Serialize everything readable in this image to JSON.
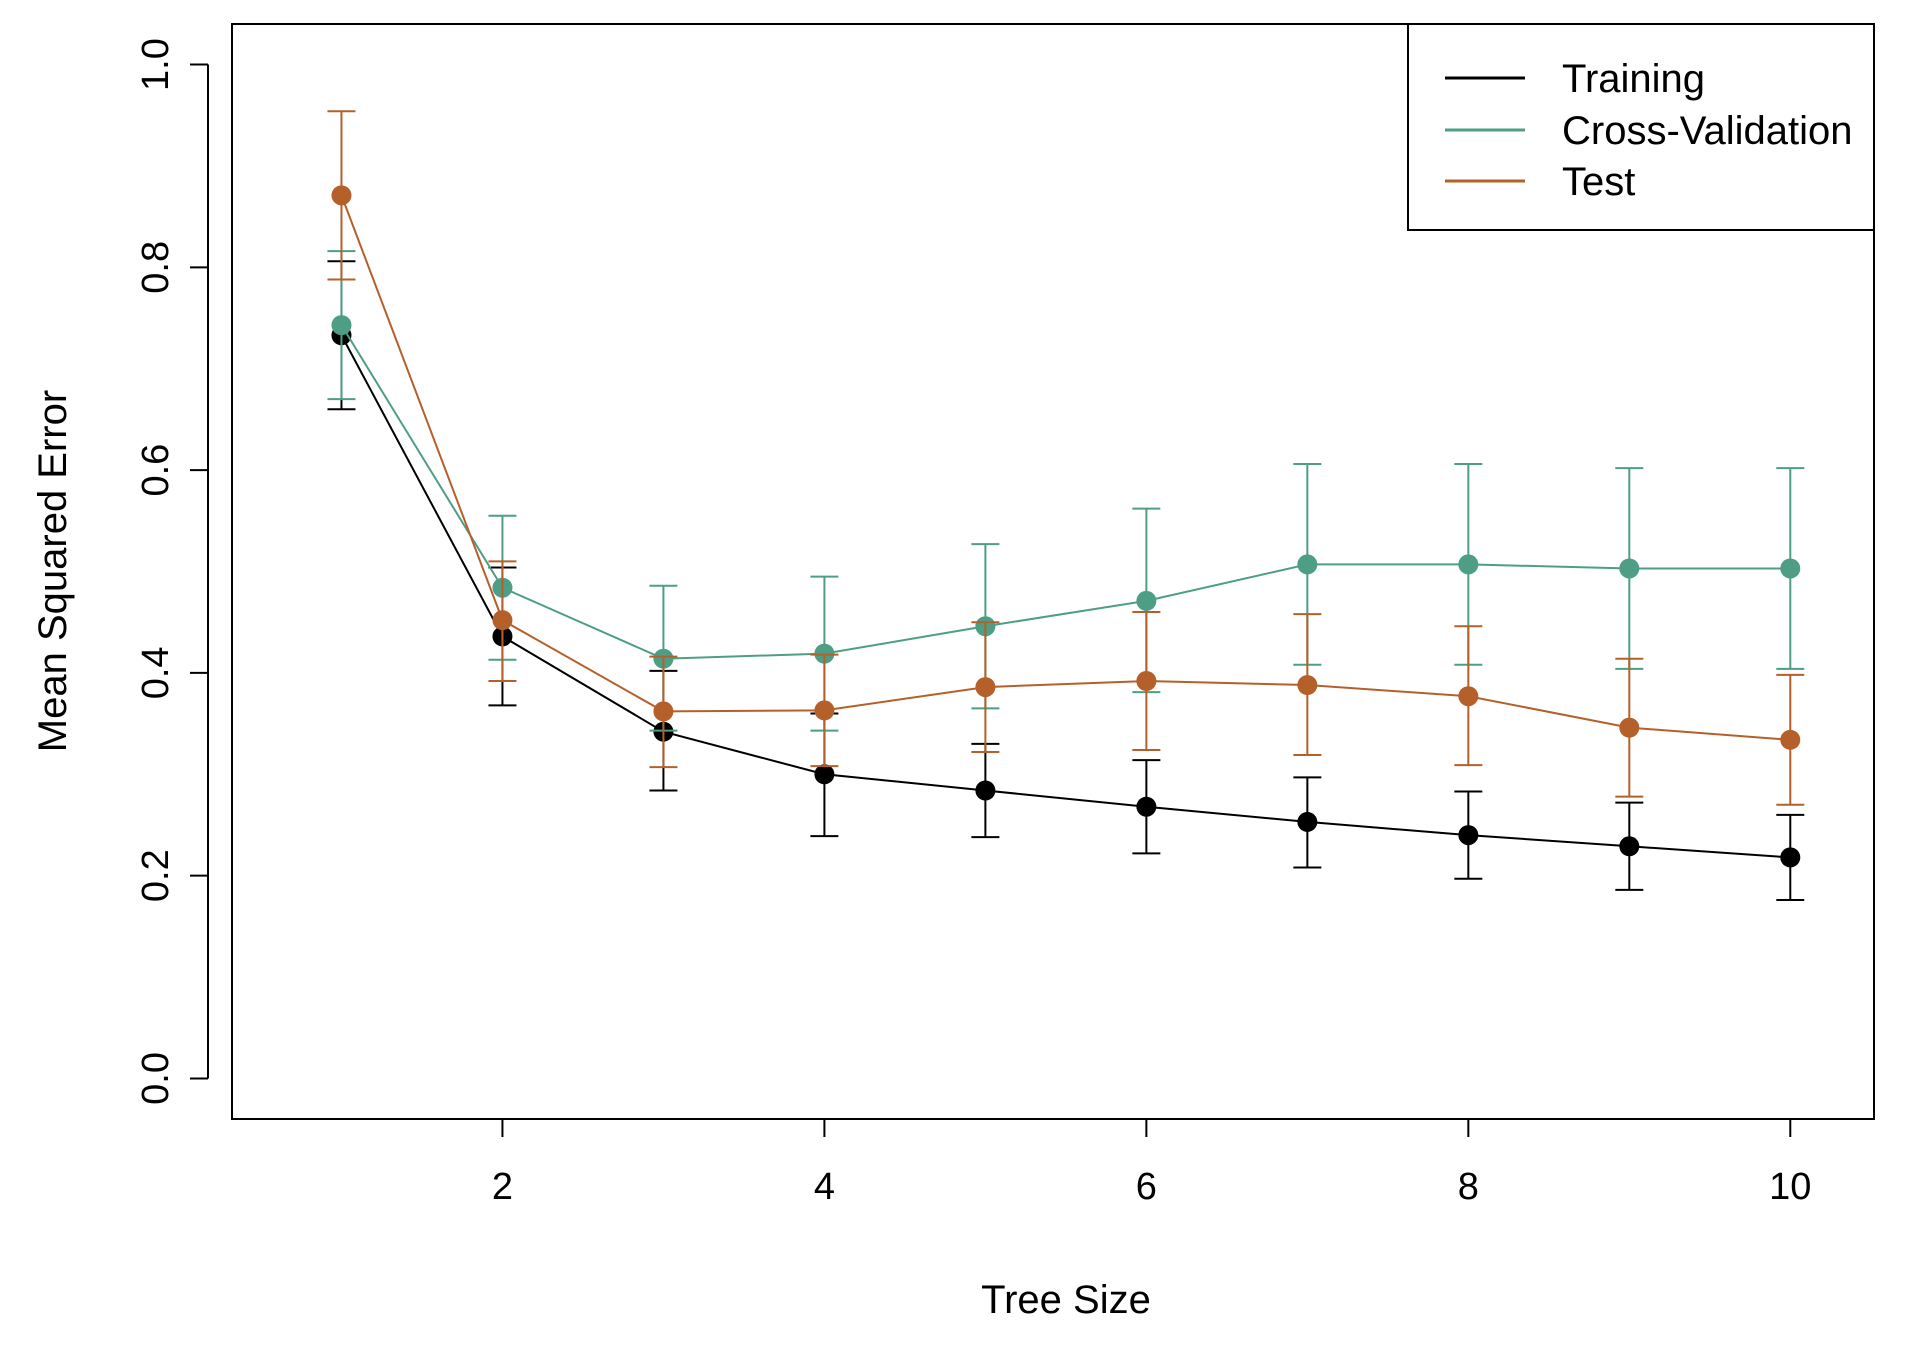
{
  "chart_data": {
    "type": "line",
    "title": "",
    "xlabel": "Tree Size",
    "ylabel": "Mean Squared Error",
    "xlim": [
      0.32,
      10.52
    ],
    "ylim": [
      -0.04,
      1.04
    ],
    "xticks": [
      2,
      4,
      6,
      8,
      10
    ],
    "xtick_labels": [
      "2",
      "4",
      "6",
      "8",
      "10"
    ],
    "yticks": [
      0.0,
      0.2,
      0.4,
      0.6,
      0.8,
      1.0
    ],
    "ytick_labels": [
      "0.0",
      "0.2",
      "0.4",
      "0.6",
      "0.8",
      "1.0"
    ],
    "grid": false,
    "legend_position": "top-right",
    "x": [
      1,
      2,
      3,
      4,
      5,
      6,
      7,
      8,
      9,
      10
    ],
    "series": [
      {
        "name": "Training",
        "color": "#000000",
        "values": [
          0.733,
          0.436,
          0.342,
          0.3,
          0.284,
          0.268,
          0.253,
          0.24,
          0.229,
          0.218
        ],
        "lower": [
          0.66,
          0.368,
          0.284,
          0.239,
          0.238,
          0.222,
          0.208,
          0.197,
          0.186,
          0.176
        ],
        "upper": [
          0.806,
          0.504,
          0.402,
          0.36,
          0.33,
          0.314,
          0.297,
          0.283,
          0.272,
          0.26
        ]
      },
      {
        "name": "Cross-Validation",
        "color": "#4d9e85",
        "values": [
          0.743,
          0.484,
          0.414,
          0.419,
          0.446,
          0.471,
          0.507,
          0.507,
          0.503,
          0.503
        ],
        "lower": [
          0.67,
          0.413,
          0.343,
          0.343,
          0.365,
          0.381,
          0.408,
          0.408,
          0.404,
          0.404
        ],
        "upper": [
          0.816,
          0.555,
          0.486,
          0.495,
          0.527,
          0.562,
          0.606,
          0.606,
          0.602,
          0.602
        ]
      },
      {
        "name": "Test",
        "color": "#b5602a",
        "values": [
          0.871,
          0.452,
          0.362,
          0.363,
          0.386,
          0.392,
          0.388,
          0.377,
          0.346,
          0.334
        ],
        "lower": [
          0.788,
          0.392,
          0.307,
          0.308,
          0.322,
          0.324,
          0.319,
          0.309,
          0.278,
          0.27
        ],
        "upper": [
          0.954,
          0.51,
          0.416,
          0.418,
          0.45,
          0.46,
          0.458,
          0.446,
          0.414,
          0.398
        ]
      }
    ]
  }
}
